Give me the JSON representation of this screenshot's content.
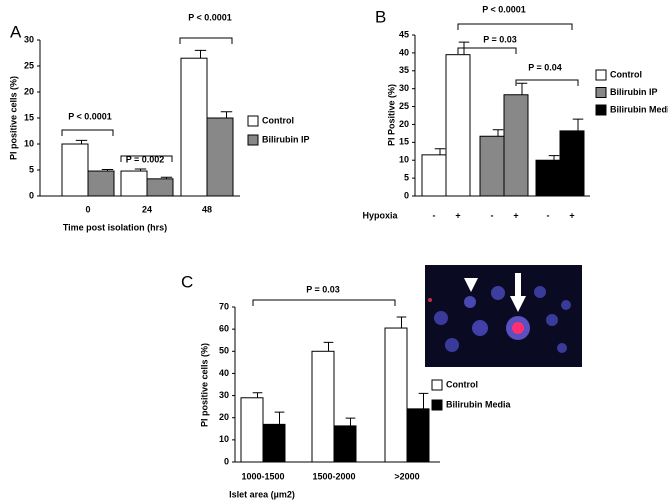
{
  "chart_data": [
    {
      "type": "bar",
      "label": "A",
      "ylabel": "PI positive cells (%)",
      "xlabel": "Time post isolation (hrs)",
      "categories": [
        "0",
        "24",
        "48"
      ],
      "series": [
        {
          "name": "Control",
          "color": "#ffffff",
          "values": [
            10,
            4.8,
            26.5
          ],
          "errors": [
            0.7,
            0.4,
            1.5
          ]
        },
        {
          "name": "Bilirubin IP",
          "color": "#888888",
          "values": [
            4.8,
            3.3,
            15
          ],
          "errors": [
            0.3,
            0.3,
            1.2
          ]
        }
      ],
      "ylim": [
        0,
        30
      ],
      "yticks": [
        0,
        5,
        10,
        15,
        20,
        25,
        30
      ],
      "annotations": [
        "P < 0.0001",
        "P = 0.002",
        "P < 0.0001"
      ]
    },
    {
      "type": "bar",
      "label": "B",
      "ylabel": "PI Positive (%)",
      "xlabel": "Hypoxia",
      "categories": [
        "-",
        "+",
        "-",
        "+",
        "-",
        "+"
      ],
      "series": [
        {
          "name": "Control",
          "color": "#ffffff",
          "values": [
            11.5,
            39.5,
            null,
            null,
            null,
            null
          ],
          "errors": [
            1.7,
            3.5,
            null,
            null,
            null,
            null
          ]
        },
        {
          "name": "Bilirubin IP",
          "color": "#888888",
          "values": [
            null,
            null,
            16.7,
            28.3,
            null,
            null
          ],
          "errors": [
            null,
            null,
            1.8,
            3.2,
            null,
            null
          ]
        },
        {
          "name": "Bilirubin Media",
          "color": "#000000",
          "values": [
            null,
            null,
            null,
            null,
            10,
            18.2
          ],
          "errors": [
            null,
            null,
            null,
            null,
            1.3,
            3.3
          ]
        }
      ],
      "ylim": [
        0,
        45
      ],
      "yticks": [
        0,
        5,
        10,
        15,
        20,
        25,
        30,
        35,
        40,
        45
      ],
      "annotations": [
        "P < 0.0001",
        "P = 0.03",
        "P = 0.04"
      ]
    },
    {
      "type": "bar",
      "label": "C",
      "ylabel": "PI positive cells (%)",
      "xlabel": "Islet area (µm2)",
      "categories": [
        "1000-1500",
        "1500-2000",
        ">2000"
      ],
      "series": [
        {
          "name": "Control",
          "color": "#ffffff",
          "values": [
            29,
            50,
            60.5
          ],
          "errors": [
            2.3,
            4,
            5
          ]
        },
        {
          "name": "Bilirubin Media",
          "color": "#000000",
          "values": [
            17,
            16.3,
            24
          ],
          "errors": [
            5.5,
            3.5,
            7
          ]
        }
      ],
      "ylim": [
        0,
        70
      ],
      "yticks": [
        0,
        10,
        20,
        30,
        40,
        50,
        60,
        70
      ],
      "annotations": [
        "P = 0.03"
      ]
    }
  ]
}
